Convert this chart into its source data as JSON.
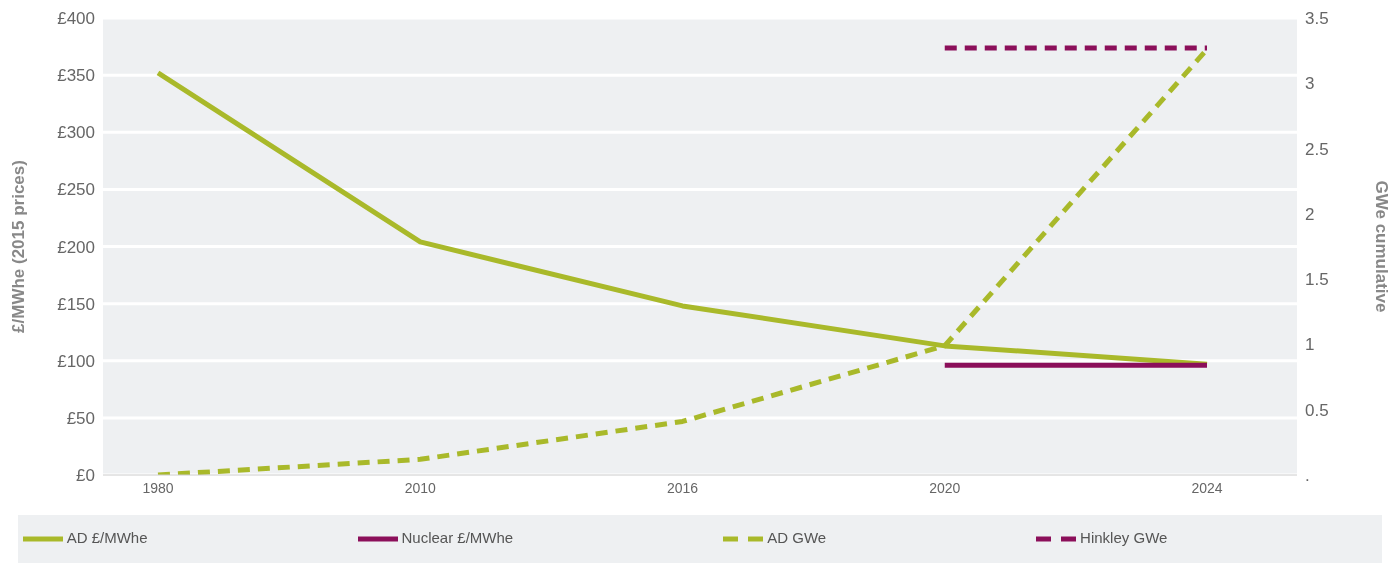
{
  "chart_data": {
    "type": "line",
    "categories": [
      "1980",
      "2010",
      "2016",
      "2020",
      "2024"
    ],
    "ylabel": "£/MWhe (2015 prices)",
    "y2label": "GWe cumulative",
    "ylim": [
      0,
      400
    ],
    "yticks": [
      {
        "value": 0,
        "label": "£0"
      },
      {
        "value": 50,
        "label": "£50"
      },
      {
        "value": 100,
        "label": "£100"
      },
      {
        "value": 150,
        "label": "£150"
      },
      {
        "value": 200,
        "label": "£200"
      },
      {
        "value": 250,
        "label": "£250"
      },
      {
        "value": 300,
        "label": "£300"
      },
      {
        "value": 350,
        "label": "£350"
      },
      {
        "value": 400,
        "label": "£400"
      }
    ],
    "y2lim": [
      0,
      3.5
    ],
    "y2ticks": [
      {
        "value": 0,
        "label": "."
      },
      0.5,
      1.0,
      1.5,
      2.0,
      2.5,
      3.0,
      3.5
    ],
    "grid": "y",
    "legend": "bottom",
    "marker": "none",
    "series": [
      {
        "name": "AD £/MWhe",
        "color": "#a9b92a",
        "values": [
          352,
          204,
          148,
          113,
          97
        ],
        "line_style": "solid"
      },
      {
        "name": "Nuclear £/MWhe",
        "color": "#8b0f5a",
        "values": [
          null,
          null,
          null,
          96,
          96
        ],
        "line_style": "solid"
      },
      {
        "name": "AD GWe",
        "color": "#a9b92a",
        "values": [
          0,
          0.12,
          0.41,
          0.99,
          3.26
        ],
        "line_style": "dashed",
        "axis": "y2"
      },
      {
        "name": "Hinkley GWe",
        "color": "#8b0f5a",
        "values": [
          null,
          null,
          null,
          3.27,
          3.27
        ],
        "line_style": "dashed",
        "axis": "y2"
      }
    ]
  }
}
